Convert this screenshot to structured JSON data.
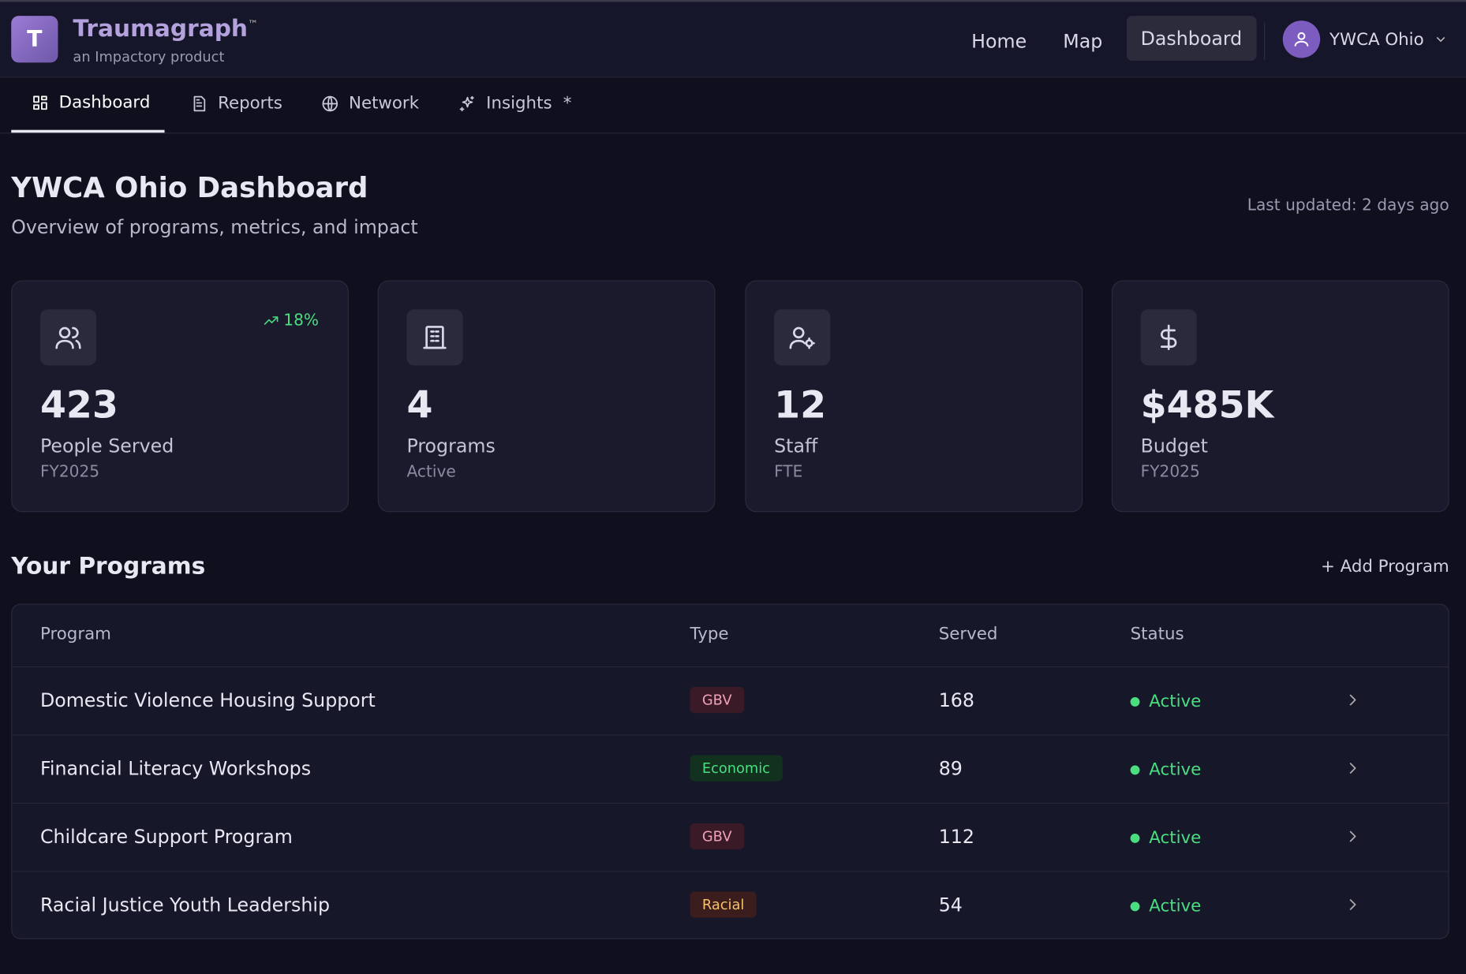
{
  "header": {
    "logo_letter": "T",
    "brand": "Traumagraph",
    "trademark": "™",
    "tagline": "an Impactory product",
    "nav": [
      "Home",
      "Map",
      "Dashboard"
    ],
    "user": "YWCA Ohio"
  },
  "tabs": [
    {
      "label": "Dashboard"
    },
    {
      "label": "Reports"
    },
    {
      "label": "Network"
    },
    {
      "label": "Insights",
      "marker": "*"
    }
  ],
  "page": {
    "title": "YWCA Ohio Dashboard",
    "subtitle": "Overview of programs, metrics, and impact",
    "last_updated": "Last updated: 2 days ago"
  },
  "stats": [
    {
      "value": "423",
      "label": "People Served",
      "sub": "FY2025",
      "trend": "18%"
    },
    {
      "value": "4",
      "label": "Programs",
      "sub": "Active"
    },
    {
      "value": "12",
      "label": "Staff",
      "sub": "FTE"
    },
    {
      "value": "$485K",
      "label": "Budget",
      "sub": "FY2025"
    }
  ],
  "programs": {
    "title": "Your Programs",
    "action": "+ Add Program",
    "columns": [
      "Program",
      "Type",
      "Served",
      "Status"
    ],
    "rows": [
      {
        "name": "Domestic Violence Housing Support",
        "type": "GBV",
        "type_color": "#f0a3b8",
        "type_background": "#3b1a28",
        "served": 168,
        "status": "Active"
      },
      {
        "name": "Financial Literacy Workshops",
        "type": "Economic",
        "type_color": "#4ade80",
        "type_background": "#12321f",
        "served": 89,
        "status": "Active"
      },
      {
        "name": "Childcare Support Program",
        "type": "GBV",
        "type_color": "#f0a3b8",
        "type_background": "#3b1a28",
        "served": 112,
        "status": "Active"
      },
      {
        "name": "Racial Justice Youth Leadership",
        "type": "Racial",
        "type_color": "#f5c26b",
        "type_background": "#3a1d1c",
        "served": 54,
        "status": "Active"
      }
    ]
  }
}
